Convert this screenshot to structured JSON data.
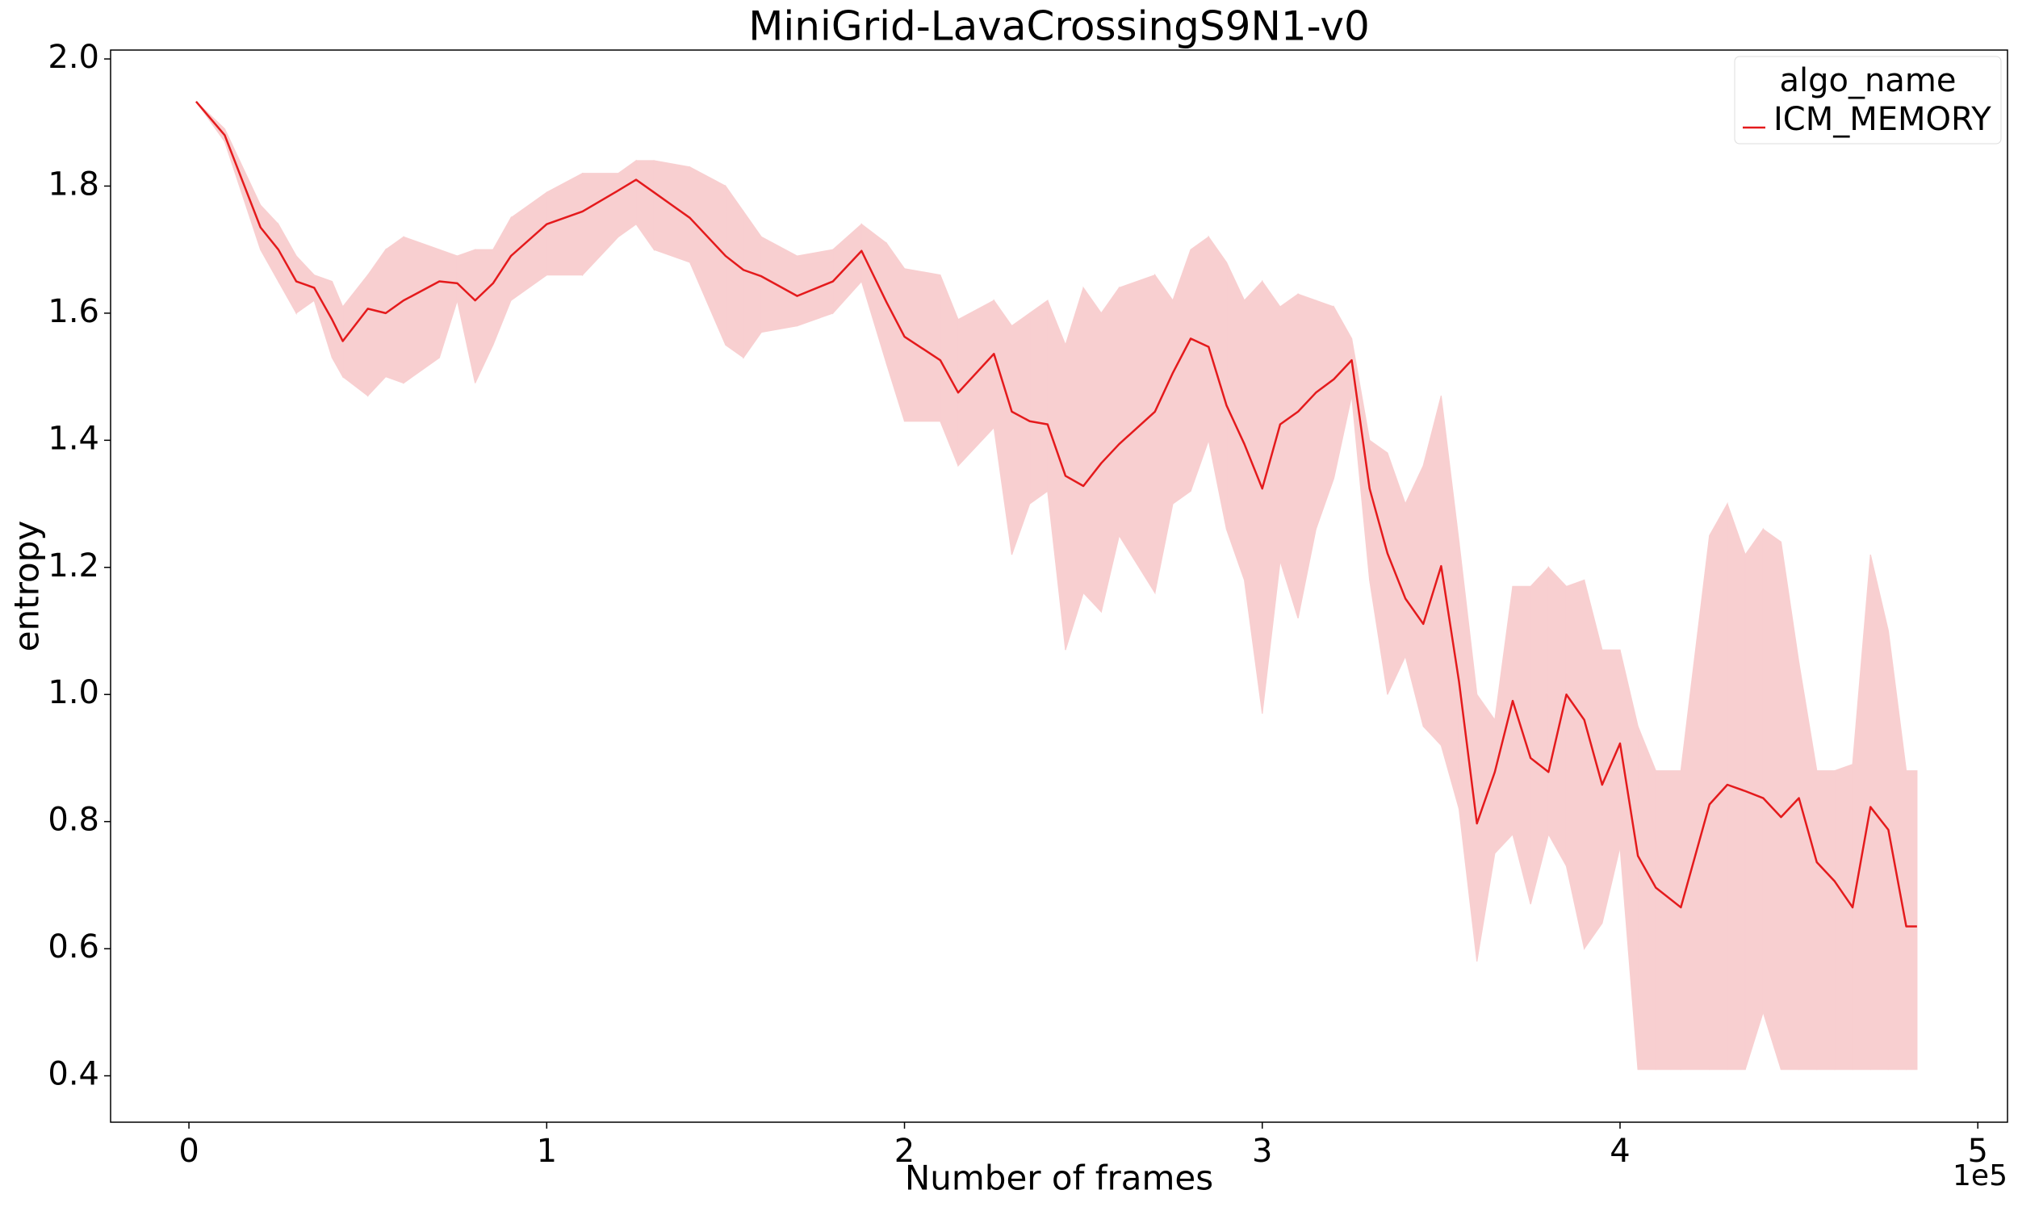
{
  "chart_data": {
    "type": "line",
    "title": "MiniGrid-LavaCrossingS9N1-v0",
    "xlabel": "Number of frames",
    "ylabel": "entropy",
    "x_offset_label": "1e5",
    "legend_title": "algo_name",
    "legend_loc": "upper right",
    "band_color": "#f8cfd0",
    "x": [
      0.02,
      0.1,
      0.2,
      0.25,
      0.3,
      0.35,
      0.4,
      0.43,
      0.5,
      0.55,
      0.6,
      0.7,
      0.75,
      0.8,
      0.85,
      0.9,
      1.0,
      1.1,
      1.2,
      1.25,
      1.3,
      1.4,
      1.5,
      1.55,
      1.6,
      1.7,
      1.8,
      1.88,
      1.95,
      2.0,
      2.1,
      2.15,
      2.25,
      2.3,
      2.35,
      2.4,
      2.45,
      2.5,
      2.55,
      2.6,
      2.7,
      2.75,
      2.8,
      2.85,
      2.9,
      2.95,
      3.0,
      3.05,
      3.1,
      3.15,
      3.2,
      3.25,
      3.3,
      3.35,
      3.4,
      3.45,
      3.5,
      3.55,
      3.6,
      3.65,
      3.7,
      3.75,
      3.8,
      3.85,
      3.9,
      3.95,
      4.0,
      4.05,
      4.1,
      4.17,
      4.25,
      4.3,
      4.35,
      4.4,
      4.45,
      4.5,
      4.55,
      4.6,
      4.65,
      4.7,
      4.75,
      4.8,
      4.83
    ],
    "series": [
      {
        "name": "ICM_MEMORY",
        "color": "#e41a1c",
        "values": [
          1.933,
          1.88,
          1.735,
          1.7,
          1.65,
          1.64,
          1.59,
          1.556,
          1.607,
          1.6,
          1.62,
          1.65,
          1.647,
          1.62,
          1.647,
          1.69,
          1.74,
          1.76,
          1.793,
          1.81,
          1.79,
          1.75,
          1.69,
          1.668,
          1.658,
          1.627,
          1.65,
          1.698,
          1.617,
          1.563,
          1.526,
          1.475,
          1.536,
          1.445,
          1.43,
          1.425,
          1.344,
          1.328,
          1.364,
          1.394,
          1.445,
          1.506,
          1.56,
          1.547,
          1.455,
          1.394,
          1.324,
          1.425,
          1.445,
          1.475,
          1.496,
          1.526,
          1.324,
          1.222,
          1.151,
          1.111,
          1.202,
          1.02,
          0.797,
          0.878,
          0.99,
          0.9,
          0.878,
          1.0,
          0.96,
          0.858,
          0.923,
          0.746,
          0.696,
          0.665,
          0.827,
          0.858,
          0.848,
          0.837,
          0.807,
          0.837,
          0.736,
          0.706,
          0.665,
          0.823,
          0.787,
          0.635,
          0.635
        ],
        "lower": [
          1.933,
          1.87,
          1.7,
          1.65,
          1.6,
          1.62,
          1.53,
          1.5,
          1.47,
          1.5,
          1.49,
          1.53,
          1.62,
          1.49,
          1.55,
          1.62,
          1.66,
          1.66,
          1.72,
          1.74,
          1.7,
          1.68,
          1.55,
          1.53,
          1.57,
          1.58,
          1.6,
          1.65,
          1.52,
          1.43,
          1.43,
          1.36,
          1.42,
          1.22,
          1.3,
          1.32,
          1.07,
          1.16,
          1.13,
          1.25,
          1.16,
          1.3,
          1.32,
          1.4,
          1.26,
          1.18,
          0.97,
          1.21,
          1.12,
          1.26,
          1.34,
          1.47,
          1.18,
          1.0,
          1.06,
          0.95,
          0.92,
          0.82,
          0.58,
          0.75,
          0.78,
          0.67,
          0.78,
          0.73,
          0.6,
          0.64,
          0.76,
          0.41,
          0.41,
          0.41,
          0.41,
          0.41,
          0.41,
          0.5,
          0.41,
          0.41,
          0.41,
          0.41,
          0.41,
          0.41,
          0.41,
          0.41,
          0.41
        ],
        "upper": [
          1.933,
          1.89,
          1.77,
          1.74,
          1.69,
          1.66,
          1.65,
          1.61,
          1.66,
          1.7,
          1.72,
          1.7,
          1.69,
          1.7,
          1.7,
          1.75,
          1.79,
          1.82,
          1.82,
          1.84,
          1.84,
          1.83,
          1.8,
          1.76,
          1.72,
          1.69,
          1.7,
          1.74,
          1.71,
          1.67,
          1.66,
          1.59,
          1.62,
          1.58,
          1.6,
          1.62,
          1.55,
          1.64,
          1.6,
          1.64,
          1.66,
          1.62,
          1.7,
          1.72,
          1.68,
          1.62,
          1.65,
          1.61,
          1.63,
          1.62,
          1.61,
          1.56,
          1.4,
          1.38,
          1.3,
          1.36,
          1.47,
          1.24,
          1.0,
          0.96,
          1.17,
          1.17,
          1.2,
          1.17,
          1.18,
          1.07,
          1.07,
          0.95,
          0.88,
          0.88,
          1.25,
          1.3,
          1.22,
          1.26,
          1.24,
          1.05,
          0.88,
          0.88,
          0.89,
          1.22,
          1.1,
          0.88,
          0.88
        ]
      }
    ],
    "xlim": [
      -0.219,
      5.083
    ],
    "ylim": [
      0.327,
      2.014
    ],
    "xticks": [
      0,
      1,
      2,
      3,
      4,
      5
    ],
    "yticks": [
      0.4,
      0.6,
      0.8,
      {
        "value": 1.0,
        "label": "1.0"
      },
      1.2,
      1.4,
      1.6,
      1.8,
      {
        "value": 2.0,
        "label": "2.0"
      }
    ]
  }
}
